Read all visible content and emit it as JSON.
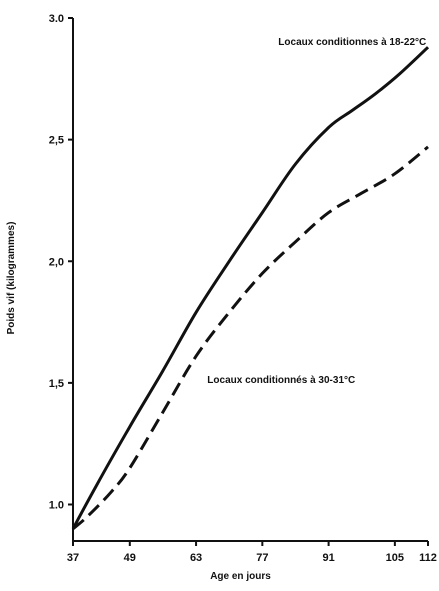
{
  "chart_data": {
    "type": "line",
    "title": "",
    "xlabel": "Age en jours",
    "ylabel": "Poids vif (kilogrammes)",
    "xlim": [
      37,
      112
    ],
    "ylim": [
      0.85,
      3.0
    ],
    "x_ticks": [
      37,
      49,
      63,
      77,
      91,
      105,
      112
    ],
    "x_tick_labels": [
      "37",
      "49",
      "63",
      "77",
      "91",
      "105",
      "112"
    ],
    "y_ticks": [
      1.0,
      1.5,
      2.0,
      2.5,
      3.0
    ],
    "y_tick_labels": [
      "1.0",
      "1,5",
      "2,0",
      "2,5",
      "3.0"
    ],
    "grid": false,
    "series": [
      {
        "name": "Locaux conditionnés à 18-22°C",
        "line_style": "solid",
        "color": "#111111",
        "x": [
          37,
          42,
          49,
          56,
          63,
          70,
          77,
          84,
          91,
          96,
          101,
          106,
          112
        ],
        "y": [
          0.9,
          1.08,
          1.32,
          1.55,
          1.79,
          2.0,
          2.2,
          2.4,
          2.55,
          2.62,
          2.69,
          2.77,
          2.88
        ]
      },
      {
        "name": "Locaux conditionnés à 30-31°C",
        "line_style": "dashed",
        "color": "#111111",
        "x": [
          37,
          40,
          45,
          49,
          56,
          63,
          70,
          77,
          84,
          91,
          98,
          105,
          112
        ],
        "y": [
          0.9,
          0.95,
          1.05,
          1.15,
          1.38,
          1.61,
          1.79,
          1.95,
          2.08,
          2.2,
          2.28,
          2.36,
          2.47
        ]
      }
    ],
    "annotations": [
      {
        "text": "Locaux conditionnes à 18-22°C",
        "x": 96,
        "y": 2.89
      },
      {
        "text": "Locaux conditionnés à 30-31°C",
        "x": 81,
        "y": 1.5
      }
    ]
  }
}
